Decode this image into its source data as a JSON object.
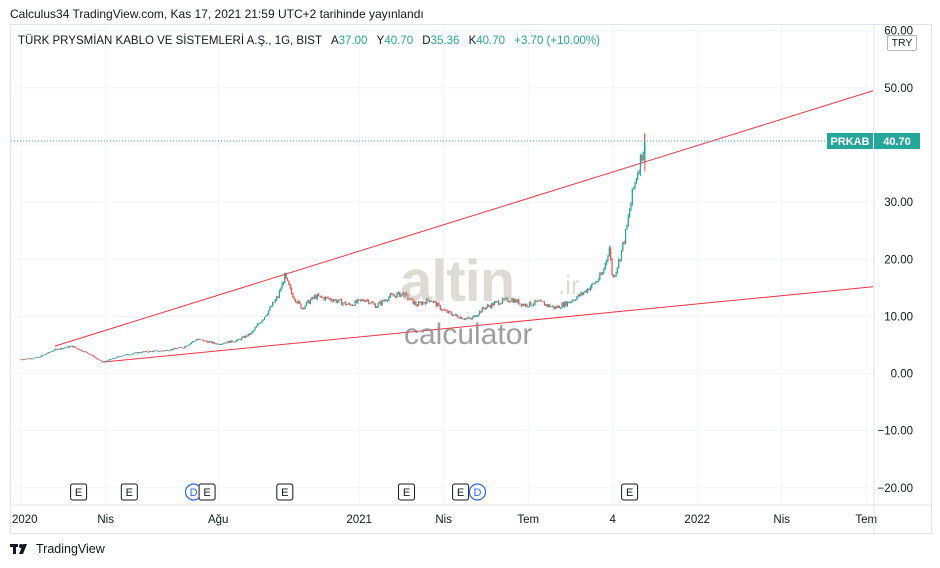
{
  "caption": "Calculus34 TradingView.com, Kas 17, 2021 21:59 UTC+2 tarihinde yayınlandı",
  "legend": {
    "symbol": "TÜRK PRYSMİAN KABLO VE SİSTEMLERİ A.Ş., 1G, BIST",
    "open_label": "A",
    "open_value": "37.00",
    "high_label": "Y",
    "high_value": "40.70",
    "low_label": "D",
    "low_value": "35.36",
    "close_label": "K",
    "close_value": "40.70",
    "change": "+3.70 (+10.00%)"
  },
  "currency": "TRY",
  "price_tag": {
    "ticker": "PRKAB",
    "value": "40.70"
  },
  "watermark": {
    "brand": "altin",
    "suffix": ".ir",
    "text": "calculator"
  },
  "footer": {
    "brand": "TradingView"
  },
  "colors": {
    "up": "#26a69a",
    "down": "#ef5350",
    "trend": "#f23645",
    "tag": "#26a69a",
    "grid": "#f0f3fa"
  },
  "chart_data": {
    "type": "candlestick",
    "ylim": [
      -23,
      61
    ],
    "y_ticks": [
      60,
      50,
      40,
      30,
      20,
      10,
      0,
      -10,
      -20
    ],
    "y_tick_labels": [
      "60.00",
      "50.00",
      "40.00",
      "30.00",
      "20.00",
      "10.00",
      "0.00",
      "−10.00",
      "−20.00"
    ],
    "x_ticks": [
      {
        "t": 0.0,
        "label": "2020"
      },
      {
        "t": 0.25,
        "label": "Nis"
      },
      {
        "t": 0.583,
        "label": "Ağu"
      },
      {
        "t": 1.0,
        "label": "2021"
      },
      {
        "t": 1.25,
        "label": "Nis"
      },
      {
        "t": 1.5,
        "label": "Tem"
      },
      {
        "t": 1.75,
        "label": "4"
      },
      {
        "t": 2.0,
        "label": "2022"
      },
      {
        "t": 2.25,
        "label": "Nis"
      },
      {
        "t": 2.5,
        "label": "Tem"
      }
    ],
    "xlim": [
      -0.03,
      2.52
    ],
    "price_series": [
      [
        0.0,
        2.5
      ],
      [
        0.05,
        2.8
      ],
      [
        0.1,
        4.2
      ],
      [
        0.15,
        4.8
      ],
      [
        0.2,
        3.5
      ],
      [
        0.24,
        2.0
      ],
      [
        0.3,
        3.2
      ],
      [
        0.36,
        3.8
      ],
      [
        0.42,
        4.0
      ],
      [
        0.48,
        4.6
      ],
      [
        0.52,
        6.0
      ],
      [
        0.58,
        5.2
      ],
      [
        0.64,
        5.8
      ],
      [
        0.68,
        7.0
      ],
      [
        0.72,
        10.0
      ],
      [
        0.76,
        13.5
      ],
      [
        0.78,
        17.0
      ],
      [
        0.8,
        14.0
      ],
      [
        0.83,
        11.5
      ],
      [
        0.87,
        13.5
      ],
      [
        0.92,
        13.0
      ],
      [
        0.97,
        12.0
      ],
      [
        1.02,
        13.0
      ],
      [
        1.05,
        11.8
      ],
      [
        1.09,
        13.5
      ],
      [
        1.13,
        14.0
      ],
      [
        1.17,
        12.0
      ],
      [
        1.21,
        13.0
      ],
      [
        1.25,
        11.0
      ],
      [
        1.29,
        10.0
      ],
      [
        1.33,
        9.5
      ],
      [
        1.37,
        11.5
      ],
      [
        1.41,
        12.5
      ],
      [
        1.45,
        13.0
      ],
      [
        1.49,
        12.0
      ],
      [
        1.53,
        12.5
      ],
      [
        1.58,
        11.5
      ],
      [
        1.62,
        12.5
      ],
      [
        1.66,
        14.0
      ],
      [
        1.7,
        16.0
      ],
      [
        1.72,
        17.5
      ],
      [
        1.74,
        22.0
      ],
      [
        1.75,
        16.5
      ],
      [
        1.77,
        20.0
      ],
      [
        1.79,
        25.0
      ],
      [
        1.81,
        32.0
      ],
      [
        1.83,
        37.0
      ],
      [
        1.845,
        40.7
      ]
    ],
    "trendlines": [
      {
        "p1": [
          0.1,
          4.8
        ],
        "p2": [
          2.52,
          49.5
        ]
      },
      {
        "p1": [
          0.24,
          2.0
        ],
        "p2": [
          2.52,
          15.2
        ]
      }
    ],
    "last_price": 40.7,
    "events": [
      {
        "t": 0.17,
        "label": "E"
      },
      {
        "t": 0.32,
        "label": "E"
      },
      {
        "t": 0.51,
        "label": "D"
      },
      {
        "t": 0.55,
        "label": "E"
      },
      {
        "t": 0.78,
        "label": "E"
      },
      {
        "t": 1.14,
        "label": "E"
      },
      {
        "t": 1.3,
        "label": "E"
      },
      {
        "t": 1.35,
        "label": "D"
      },
      {
        "t": 1.8,
        "label": "E"
      }
    ]
  }
}
